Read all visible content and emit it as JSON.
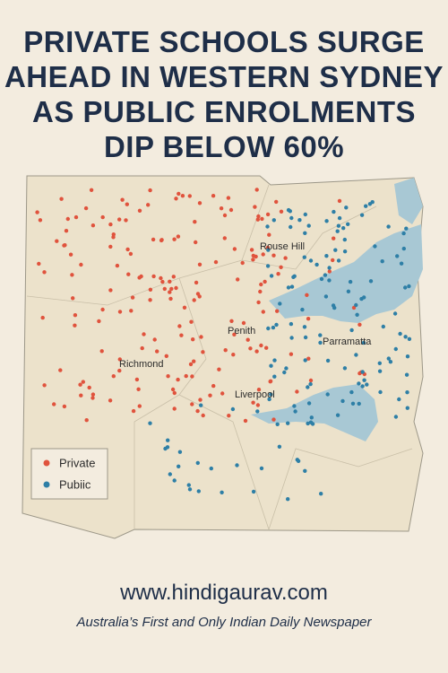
{
  "header": {
    "title_lines": [
      "PRIVATE SCHOOLS SURGE",
      "AHEAD IN WESTERN SYDNEY",
      "AS PUBLIC ENROLMENTS",
      "DIP BELOW 60%"
    ]
  },
  "map": {
    "places": [
      "Rouse Hill",
      "Penith",
      "Parramatta",
      "Richmond",
      "Liverpool"
    ],
    "legend": [
      "Private",
      "Pubiic"
    ]
  },
  "footer": {
    "url": "www.hindigaurav.com",
    "tagline": "Australia’s First and Only Indian Daily Newspaper"
  }
}
